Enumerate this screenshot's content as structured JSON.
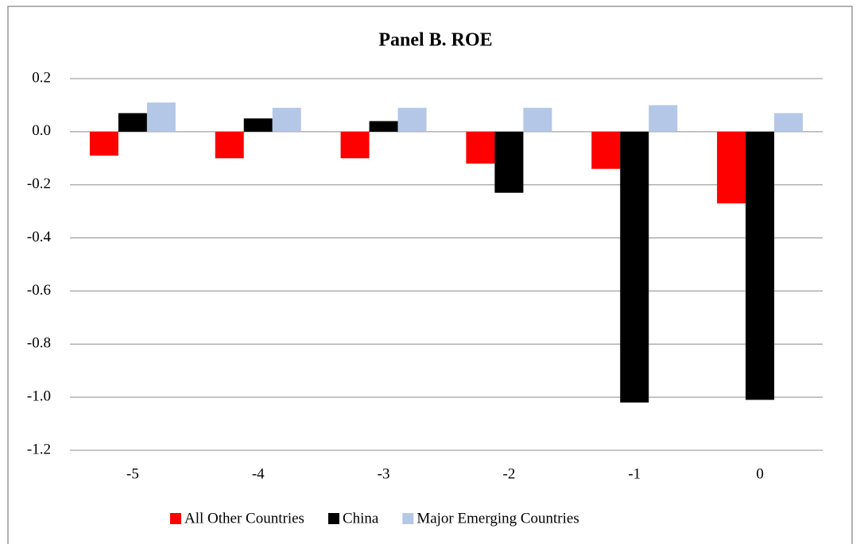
{
  "chart_data": {
    "type": "bar",
    "title": "Panel B. ROE",
    "categories": [
      "-5",
      "-4",
      "-3",
      "-2",
      "-1",
      "0"
    ],
    "series": [
      {
        "name": "All Other Countries",
        "color": "#ff0000",
        "values": [
          -0.09,
          -0.1,
          -0.1,
          -0.12,
          -0.14,
          -0.27
        ]
      },
      {
        "name": "China",
        "color": "#000000",
        "values": [
          0.07,
          0.05,
          0.04,
          -0.23,
          -1.02,
          -1.01
        ]
      },
      {
        "name": "Major Emerging Countries",
        "color": "#b4c7e7",
        "values": [
          0.11,
          0.09,
          0.09,
          0.09,
          0.1,
          0.07
        ]
      }
    ],
    "ylim": [
      -1.2,
      0.2
    ],
    "yticks": [
      0.2,
      {
        "value": 0,
        "label": "0.0"
      },
      -0.2,
      -0.4,
      -0.6,
      -0.8,
      {
        "value": -1,
        "label": "-1.0"
      },
      -1.2
    ],
    "grid": true,
    "legend": "bottom"
  }
}
